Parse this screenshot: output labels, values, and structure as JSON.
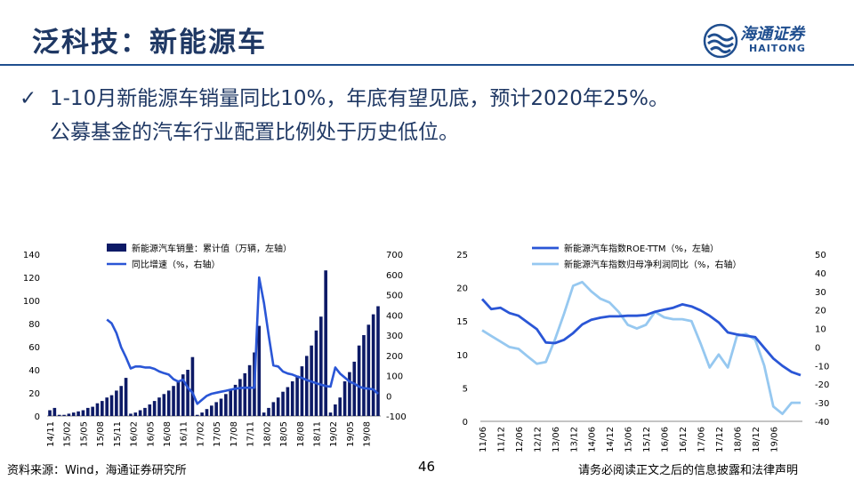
{
  "header": {
    "title": "泛科技：新能源车",
    "logo_cn": "海通证券",
    "logo_en": "HAITONG"
  },
  "bullet": {
    "icon": "checkmark-icon",
    "line1": "1-10月新能源车销量同比10%，年底有望见底，预计2020年25%。",
    "line2": "公募基金的汽车行业配置比例处于历史低位。"
  },
  "footer": {
    "source": "资料来源：Wind，海通证券研究所",
    "page": "46",
    "disclaimer": "请务必阅读正文之后的信息披露和法律声明"
  },
  "colors": {
    "title": "#1f3864",
    "bars": "#0d1a66",
    "line_primary": "#2a56d6",
    "line_light": "#96c8f0"
  },
  "chart_data": [
    {
      "type": "bar",
      "legend": [
        "新能源汽车销量：累计值（万辆，左轴）",
        "同比增速（%，右轴）"
      ],
      "x_tick_labels": [
        "14/11",
        "15/02",
        "15/05",
        "15/08",
        "15/11",
        "16/02",
        "16/05",
        "16/08",
        "16/11",
        "17/02",
        "17/05",
        "17/08",
        "17/11",
        "18/02",
        "18/05",
        "18/08",
        "18/11",
        "19/02",
        "19/05",
        "19/08"
      ],
      "y_left_ticks": [
        "0",
        "20",
        "40",
        "60",
        "80",
        "100",
        "120",
        "140"
      ],
      "y_right_ticks": [
        "-100",
        "0",
        "100",
        "200",
        "300",
        "400",
        "500",
        "600",
        "700"
      ],
      "ylim_left": [
        0,
        140
      ],
      "ylim_right": [
        -100,
        700
      ],
      "series": [
        {
          "name": "新能源汽车销量：累计值（万辆，左轴）",
          "axis": "left",
          "values": [
            5,
            7,
            1,
            1,
            2,
            3,
            4,
            5,
            7,
            8,
            11,
            13,
            16,
            18,
            22,
            26,
            33,
            2,
            3,
            5,
            7,
            10,
            13,
            16,
            19,
            22,
            26,
            30,
            36,
            40,
            51,
            1,
            3,
            6,
            9,
            12,
            15,
            19,
            23,
            27,
            32,
            37,
            44,
            55,
            78,
            3,
            7,
            12,
            16,
            21,
            25,
            30,
            35,
            43,
            52,
            61,
            74,
            86,
            126,
            3,
            10,
            16,
            30,
            38,
            47,
            61,
            70,
            79,
            88,
            95
          ]
        },
        {
          "name": "同比增速（%，右轴）",
          "axis": "right",
          "points": [
            [
              12,
              377
            ],
            [
              13,
              358
            ],
            [
              14,
              310
            ],
            [
              15,
              240
            ],
            [
              16,
              190
            ],
            [
              17,
              135
            ],
            [
              18,
              145
            ],
            [
              19,
              145
            ],
            [
              20,
              140
            ],
            [
              21,
              140
            ],
            [
              22,
              133
            ],
            [
              23,
              120
            ],
            [
              24,
              112
            ],
            [
              25,
              105
            ],
            [
              26,
              82
            ],
            [
              27,
              70
            ],
            [
              28,
              80
            ],
            [
              29,
              40
            ],
            [
              30,
              15
            ],
            [
              31,
              -40
            ],
            [
              32,
              -20
            ],
            [
              33,
              0
            ],
            [
              34,
              10
            ],
            [
              35,
              15
            ],
            [
              36,
              20
            ],
            [
              37,
              25
            ],
            [
              38,
              30
            ],
            [
              39,
              35
            ],
            [
              40,
              38
            ],
            [
              41,
              40
            ],
            [
              42,
              40
            ],
            [
              43,
              40
            ],
            [
              44,
              585
            ],
            [
              45,
              460
            ],
            [
              46,
              300
            ],
            [
              47,
              150
            ],
            [
              48,
              145
            ],
            [
              49,
              120
            ],
            [
              50,
              110
            ],
            [
              51,
              105
            ],
            [
              52,
              95
            ],
            [
              53,
              88
            ],
            [
              54,
              78
            ],
            [
              55,
              70
            ],
            [
              56,
              62
            ],
            [
              57,
              55
            ],
            [
              58,
              48
            ],
            [
              59,
              45
            ],
            [
              60,
              140
            ],
            [
              61,
              110
            ],
            [
              62,
              90
            ],
            [
              63,
              70
            ],
            [
              64,
              60
            ],
            [
              65,
              45
            ],
            [
              66,
              38
            ],
            [
              67,
              35
            ],
            [
              68,
              32
            ],
            [
              69,
              10
            ]
          ]
        }
      ]
    },
    {
      "type": "line",
      "legend": [
        "新能源汽车指数ROE-TTM（%，左轴）",
        "新能源汽车指数归母净利润同比（%，右轴）"
      ],
      "x_tick_labels": [
        "11/06",
        "11/12",
        "12/06",
        "12/12",
        "13/06",
        "13/12",
        "14/06",
        "14/12",
        "15/06",
        "15/12",
        "16/06",
        "16/12",
        "17/06",
        "17/12",
        "18/06",
        "18/12",
        "19/06"
      ],
      "y_left_ticks": [
        "0",
        "5",
        "10",
        "15",
        "20",
        "25"
      ],
      "y_right_ticks": [
        "-40",
        "-30",
        "-20",
        "-10",
        "0",
        "10",
        "20",
        "30",
        "40",
        "50"
      ],
      "ylim_left": [
        0,
        25
      ],
      "ylim_right": [
        -40,
        50
      ],
      "series": [
        {
          "name": "新能源汽车指数ROE-TTM（%，左轴）",
          "axis": "left",
          "points": [
            [
              0,
              18.3
            ],
            [
              0.5,
              16.8
            ],
            [
              1,
              17.0
            ],
            [
              1.5,
              16.2
            ],
            [
              2,
              15.8
            ],
            [
              2.5,
              14.8
            ],
            [
              3,
              13.8
            ],
            [
              3.5,
              11.8
            ],
            [
              4,
              11.7
            ],
            [
              4.5,
              12.2
            ],
            [
              5,
              13.2
            ],
            [
              5.5,
              14.5
            ],
            [
              6,
              15.2
            ],
            [
              6.5,
              15.5
            ],
            [
              7,
              15.7
            ],
            [
              7.5,
              15.7
            ],
            [
              8,
              15.8
            ],
            [
              8.5,
              15.8
            ],
            [
              9,
              15.9
            ],
            [
              9.5,
              16.4
            ],
            [
              10,
              16.7
            ],
            [
              10.5,
              17.0
            ],
            [
              11,
              17.5
            ],
            [
              11.5,
              17.2
            ],
            [
              12,
              16.6
            ],
            [
              12.5,
              15.8
            ],
            [
              13,
              14.8
            ],
            [
              13.5,
              13.3
            ],
            [
              14,
              13.0
            ],
            [
              14.5,
              12.8
            ],
            [
              15,
              12.6
            ],
            [
              15.5,
              11.0
            ],
            [
              16,
              9.4
            ],
            [
              16.5,
              8.3
            ],
            [
              17,
              7.4
            ],
            [
              17.5,
              6.9
            ]
          ]
        },
        {
          "name": "新能源汽车指数归母净利润同比（%，右轴）",
          "axis": "right",
          "points": [
            [
              0,
              9
            ],
            [
              0.5,
              6
            ],
            [
              1,
              3
            ],
            [
              1.5,
              0
            ],
            [
              2,
              -1
            ],
            [
              2.5,
              -5
            ],
            [
              3,
              -9
            ],
            [
              3.5,
              -8
            ],
            [
              4,
              4
            ],
            [
              4.5,
              18
            ],
            [
              5,
              33
            ],
            [
              5.5,
              35
            ],
            [
              6,
              30
            ],
            [
              6.5,
              26
            ],
            [
              7,
              24
            ],
            [
              7.5,
              19
            ],
            [
              8,
              12
            ],
            [
              8.5,
              10
            ],
            [
              9,
              12
            ],
            [
              9.5,
              19
            ],
            [
              10,
              16
            ],
            [
              10.5,
              15
            ],
            [
              11,
              15
            ],
            [
              11.5,
              14
            ],
            [
              12,
              2
            ],
            [
              12.5,
              -11
            ],
            [
              13,
              -4
            ],
            [
              13.5,
              -11
            ],
            [
              14,
              6
            ],
            [
              14.5,
              7
            ],
            [
              15,
              4
            ],
            [
              15.5,
              -10
            ],
            [
              16,
              -32
            ],
            [
              16.5,
              -36
            ],
            [
              17,
              -30
            ],
            [
              17.5,
              -30
            ]
          ]
        }
      ]
    }
  ]
}
